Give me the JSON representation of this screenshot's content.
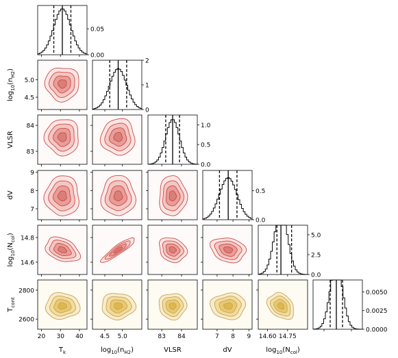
{
  "chart_data": {
    "type": "corner",
    "parameters": [
      {
        "name": "T_k",
        "label": "T",
        "label_sub": "k",
        "xlim": [
          18,
          44
        ],
        "xticks": [
          {
            "v": 20,
            "t": "20"
          },
          {
            "v": 30,
            "t": "30"
          },
          {
            "v": 40,
            "t": "40"
          }
        ],
        "median": 31,
        "q16": 26.5,
        "q84": 35.5,
        "sigma": 4.5,
        "hist_ylim": [
          0,
          0.095
        ],
        "hist_yticks": [
          {
            "v": 0,
            "t": "0.00"
          },
          {
            "v": 0.05,
            "t": "0.05"
          }
        ]
      },
      {
        "name": "log10_nH2",
        "label": "log",
        "label_sub": "10",
        "label_tail": "(n",
        "label_sub2": "H2",
        "label_end": ")",
        "xlim": [
          4.15,
          5.55
        ],
        "xticks": [
          {
            "v": 4.5,
            "t": "4.5"
          },
          {
            "v": 5.0,
            "t": "5.0"
          }
        ],
        "ylim": [
          4.15,
          5.55
        ],
        "yticks": [
          {
            "v": 4.5,
            "t": "4.5"
          },
          {
            "v": 5.0,
            "t": "5.0"
          }
        ],
        "median": 4.88,
        "q16": 4.64,
        "q84": 5.12,
        "sigma": 0.24,
        "hist_ylim": [
          0,
          2.0
        ],
        "hist_yticks": [
          {
            "v": 0,
            "t": "0"
          },
          {
            "v": 1,
            "t": "1"
          },
          {
            "v": 2,
            "t": "2"
          }
        ]
      },
      {
        "name": "VLSR",
        "label": "VLSR",
        "xlim": [
          82.3,
          84.8
        ],
        "xticks": [
          {
            "v": 83,
            "t": "83"
          },
          {
            "v": 84,
            "t": "84"
          }
        ],
        "ylim": [
          82.5,
          84.4
        ],
        "yticks": [
          {
            "v": 83,
            "t": "83"
          },
          {
            "v": 84,
            "t": "84"
          }
        ],
        "median": 83.55,
        "q16": 83.2,
        "q84": 83.9,
        "sigma": 0.35,
        "hist_ylim": [
          0,
          1.25
        ],
        "hist_yticks": [
          {
            "v": 0,
            "t": "0.0"
          },
          {
            "v": 0.5,
            "t": "0.5"
          },
          {
            "v": 1.0,
            "t": "1.0"
          }
        ]
      },
      {
        "name": "dV",
        "label": "dV",
        "xlim": [
          6.1,
          9.2
        ],
        "xticks": [
          {
            "v": 7,
            "t": "7"
          },
          {
            "v": 8,
            "t": "8"
          },
          {
            "v": 9,
            "t": "9"
          }
        ],
        "ylim": [
          6.4,
          9.1
        ],
        "yticks": [
          {
            "v": 7,
            "t": "7"
          },
          {
            "v": 8,
            "t": "8"
          },
          {
            "v": 9,
            "t": "9"
          }
        ],
        "median": 7.7,
        "q16": 7.15,
        "q84": 8.25,
        "sigma": 0.55,
        "hist_ylim": [
          0,
          0.85
        ],
        "hist_yticks": [
          {
            "v": 0,
            "t": "0.0"
          },
          {
            "v": 0.5,
            "t": "0.5"
          }
        ]
      },
      {
        "name": "log10_Ncol",
        "label": "log",
        "label_sub": "10",
        "label_tail": "(N",
        "label_sub2": "col",
        "label_end": ")",
        "xlim": [
          14.53,
          14.9
        ],
        "xticks": [
          {
            "v": 14.6,
            "t": "14.60"
          },
          {
            "v": 14.75,
            "t": "14.75"
          }
        ],
        "ylim": [
          14.5,
          14.9
        ],
        "yticks": [
          {
            "v": 14.6,
            "t": "14.6"
          },
          {
            "v": 14.8,
            "t": "14.8"
          }
        ],
        "median": 14.7,
        "q16": 14.67,
        "q84": 14.78,
        "sigma": 0.05,
        "hist_ylim": [
          0,
          6.2
        ],
        "hist_yticks": [
          {
            "v": 0,
            "t": "0.0"
          },
          {
            "v": 2.5,
            "t": "2.5"
          },
          {
            "v": 5.0,
            "t": "5.0"
          }
        ]
      },
      {
        "name": "T_cont",
        "label": "T",
        "label_sub": "cont",
        "ylim": [
          2530,
          2870
        ],
        "yticks": [
          {
            "v": 2600,
            "t": "2600"
          },
          {
            "v": 2800,
            "t": "2800"
          }
        ],
        "median": 2690,
        "q16": 2645,
        "q84": 2735,
        "sigma": 45,
        "hist_xlim": [
          2520,
          2880
        ],
        "hist_ylim": [
          0,
          0.0066
        ],
        "hist_yticks": [
          {
            "v": 0,
            "t": "0.0000"
          },
          {
            "v": 0.0025,
            "t": "0.0025"
          },
          {
            "v": 0.005,
            "t": "0.0050"
          }
        ]
      }
    ],
    "contours": {
      "red": {
        "fill": [
          "#fbe6e4",
          "#f4c6c2",
          "#e89d98",
          "#d97f7a"
        ],
        "line": "#cc4a46",
        "bg": "#fdfaf9"
      },
      "gold": {
        "fill": [
          "#f8ecc9",
          "#f1dc9b",
          "#e9c970",
          "#deb84c"
        ],
        "line": "#c7a25a",
        "bg": "#fdfbf2"
      },
      "levels": [
        2.0,
        1.5,
        1.0,
        0.5
      ],
      "correlations": {
        "4-1": 0.9,
        "4-0": -0.35,
        "4-2": -0.2,
        "4-3": -0.2,
        "5-4": -0.3
      }
    }
  }
}
